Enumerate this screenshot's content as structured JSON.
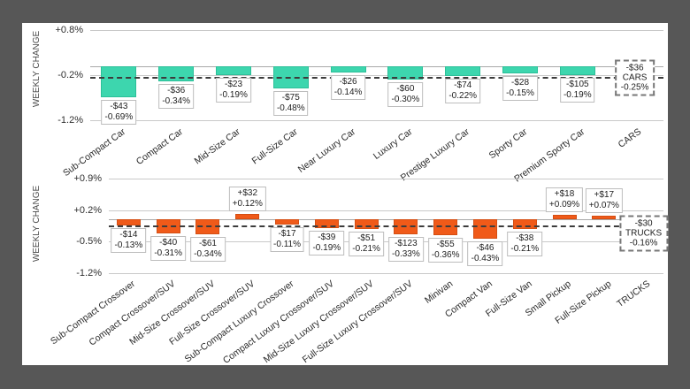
{
  "background_color": "#575757",
  "panel_color": "#ffffff",
  "chart_data": [
    {
      "type": "bar",
      "group": "CARS",
      "ylabel": "WEEKLY CHANGE",
      "ylim": [
        -1.2,
        0.8
      ],
      "grid": true,
      "bar_color": "#3DD6AE",
      "bar_border_color": "#2CBF98",
      "yticks": [
        {
          "value": 0.8,
          "label": "+0.8%"
        },
        {
          "value": -0.2,
          "label": "-0.2%"
        },
        {
          "value": -1.2,
          "label": "-1.2%"
        }
      ],
      "average": {
        "value_pct": -0.25,
        "dollar": "-$36",
        "label": "CARS",
        "pct_label": "-0.25%"
      },
      "bars": [
        {
          "category": "Sub-Compact Car",
          "dollar": "-$43",
          "pct": -0.69,
          "pct_label": "-0.69%"
        },
        {
          "category": "Compact Car",
          "dollar": "-$36",
          "pct": -0.34,
          "pct_label": "-0.34%"
        },
        {
          "category": "Mid-Size Car",
          "dollar": "-$23",
          "pct": -0.19,
          "pct_label": "-0.19%"
        },
        {
          "category": "Full-Size Car",
          "dollar": "-$75",
          "pct": -0.48,
          "pct_label": "-0.48%"
        },
        {
          "category": "Near Luxury Car",
          "dollar": "-$26",
          "pct": -0.14,
          "pct_label": "-0.14%"
        },
        {
          "category": "Luxury Car",
          "dollar": "-$60",
          "pct": -0.3,
          "pct_label": "-0.30%"
        },
        {
          "category": "Prestige Luxury Car",
          "dollar": "-$74",
          "pct": -0.22,
          "pct_label": "-0.22%"
        },
        {
          "category": "Sporty Car",
          "dollar": "-$28",
          "pct": -0.15,
          "pct_label": "-0.15%"
        },
        {
          "category": "Premium Sporty Car",
          "dollar": "-$105",
          "pct": -0.19,
          "pct_label": "-0.19%"
        }
      ]
    },
    {
      "type": "bar",
      "group": "TRUCKS",
      "ylabel": "WEEKLY CHANGE",
      "ylim": [
        -1.2,
        0.9
      ],
      "grid": true,
      "bar_color": "#F05A19",
      "bar_border_color": "#D44E12",
      "yticks": [
        {
          "value": 0.9,
          "label": "+0.9%"
        },
        {
          "value": 0.2,
          "label": "+0.2%"
        },
        {
          "value": -0.5,
          "label": "-0.5%"
        },
        {
          "value": -1.2,
          "label": "-1.2%"
        }
      ],
      "average": {
        "value_pct": -0.16,
        "dollar": "-$30",
        "label": "TRUCKS",
        "pct_label": "-0.16%"
      },
      "bars": [
        {
          "category": "Sub-Compact Crossover",
          "dollar": "-$14",
          "pct": -0.13,
          "pct_label": "-0.13%"
        },
        {
          "category": "Compact Crossover/SUV",
          "dollar": "-$40",
          "pct": -0.31,
          "pct_label": "-0.31%"
        },
        {
          "category": "Mid-Size Crossover/SUV",
          "dollar": "-$61",
          "pct": -0.34,
          "pct_label": "-0.34%"
        },
        {
          "category": "Full-Size Crossover/SUV",
          "dollar": "+$32",
          "pct": 0.12,
          "pct_label": "+0.12%"
        },
        {
          "category": "Sub-Compact Luxury Crossover",
          "dollar": "-$17",
          "pct": -0.11,
          "pct_label": "-0.11%"
        },
        {
          "category": "Compact Luxury Crossover/SUV",
          "dollar": "-$39",
          "pct": -0.19,
          "pct_label": "-0.19%"
        },
        {
          "category": "Mid-Size Luxury Crossover/SUV",
          "dollar": "-$51",
          "pct": -0.21,
          "pct_label": "-0.21%"
        },
        {
          "category": "Full-Size Luxury Crossover/SUV",
          "dollar": "-$123",
          "pct": -0.33,
          "pct_label": "-0.33%"
        },
        {
          "category": "Minivan",
          "dollar": "-$55",
          "pct": -0.36,
          "pct_label": "-0.36%"
        },
        {
          "category": "Compact Van",
          "dollar": "-$46",
          "pct": -0.43,
          "pct_label": "-0.43%"
        },
        {
          "category": "Full-Size Van",
          "dollar": "-$38",
          "pct": -0.21,
          "pct_label": "-0.21%"
        },
        {
          "category": "Small Pickup",
          "dollar": "+$18",
          "pct": 0.09,
          "pct_label": "+0.09%"
        },
        {
          "category": "Full-Size Pickup",
          "dollar": "+$17",
          "pct": 0.07,
          "pct_label": "+0.07%"
        }
      ]
    }
  ]
}
